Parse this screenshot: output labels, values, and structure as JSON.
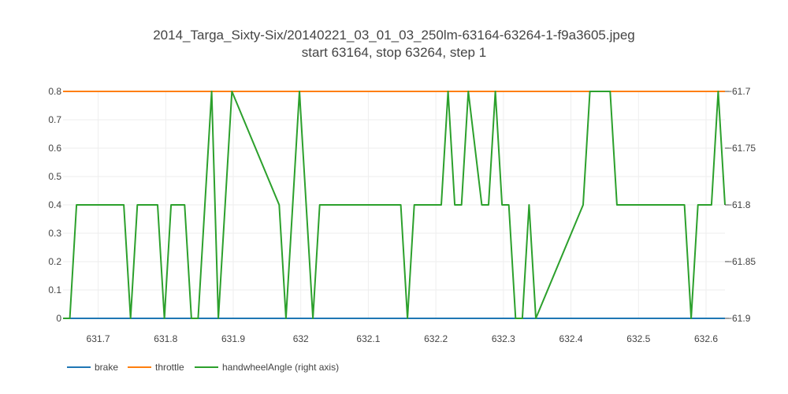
{
  "chart_data": {
    "type": "line",
    "title": "2014_Targa_Sixty-Six/20140221_03_01_03_250lm-63164-63264-1-f9a3605.jpeg",
    "subtitle": "start 63164, stop 63264, step 1",
    "xlim": [
      631.648,
      632.628
    ],
    "x_ticks": [
      631.7,
      631.8,
      631.9,
      632,
      632.1,
      632.2,
      632.3,
      632.4,
      632.5,
      632.6
    ],
    "x_tick_labels": [
      "631.7",
      "631.8",
      "631.9",
      "632",
      "632.1",
      "632.2",
      "632.3",
      "632.4",
      "632.5",
      "632.6"
    ],
    "y_left": {
      "range": [
        0,
        0.8
      ],
      "ticks": [
        0,
        0.1,
        0.2,
        0.3,
        0.4,
        0.5,
        0.6,
        0.7,
        0.8
      ],
      "tick_labels": [
        "0",
        "0.1",
        "0.2",
        "0.3",
        "0.4",
        "0.5",
        "0.6",
        "0.7",
        "0.8"
      ]
    },
    "y_right": {
      "range": [
        -61.9,
        -61.7
      ],
      "ticks": [
        -61.9,
        -61.85,
        -61.8,
        -61.75,
        -61.7
      ],
      "tick_labels": [
        "−61.9",
        "−61.85",
        "−61.8",
        "−61.75",
        "−61.7"
      ]
    },
    "grid": true,
    "legend_position": "bottom-left",
    "series": [
      {
        "name": "brake",
        "color": "#1f77b4",
        "axis": "left",
        "x": [
          631.648,
          632.628
        ],
        "y": [
          0,
          0
        ]
      },
      {
        "name": "throttle",
        "color": "#ff7f0e",
        "axis": "left",
        "x": [
          631.648,
          632.628
        ],
        "y": [
          0.8,
          0.8
        ]
      },
      {
        "name": "handwheelAngle (right axis)",
        "color": "#2ca02c",
        "axis": "right",
        "x": [
          631.648,
          631.658,
          631.668,
          631.738,
          631.748,
          631.758,
          631.788,
          631.798,
          631.808,
          631.828,
          631.838,
          631.848,
          631.868,
          631.878,
          631.898,
          631.968,
          631.978,
          631.998,
          632.018,
          632.028,
          632.148,
          632.158,
          632.168,
          632.208,
          632.218,
          632.228,
          632.238,
          632.248,
          632.268,
          632.278,
          632.288,
          632.298,
          632.308,
          632.318,
          632.328,
          632.338,
          632.348,
          632.418,
          632.428,
          632.458,
          632.468,
          632.568,
          632.578,
          632.588,
          632.608,
          632.618,
          632.628
        ],
        "y": [
          -61.9,
          -61.9,
          -61.8,
          -61.8,
          -61.9,
          -61.8,
          -61.8,
          -61.9,
          -61.8,
          -61.8,
          -61.9,
          -61.9,
          -61.7,
          -61.9,
          -61.7,
          -61.8,
          -61.9,
          -61.7,
          -61.9,
          -61.8,
          -61.8,
          -61.9,
          -61.8,
          -61.8,
          -61.7,
          -61.8,
          -61.8,
          -61.7,
          -61.8,
          -61.8,
          -61.7,
          -61.8,
          -61.8,
          -61.9,
          -61.9,
          -61.8,
          -61.9,
          -61.8,
          -61.7,
          -61.7,
          -61.8,
          -61.8,
          -61.9,
          -61.8,
          -61.8,
          -61.7,
          -61.8
        ]
      }
    ]
  }
}
